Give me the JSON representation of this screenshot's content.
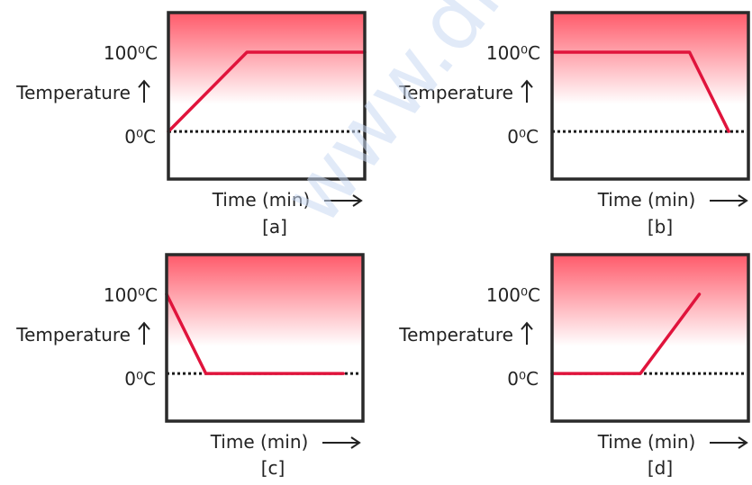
{
  "watermark": "www.drea",
  "colors": {
    "line": "#e0143c",
    "frame": "#2a2a2a",
    "gradient_top": "#ff5a6a",
    "gradient_bottom": "#ffffff",
    "dotted": "#1a1a1a",
    "watermark": "#c9d8f2"
  },
  "chart_data": [
    {
      "type": "line",
      "panel_label": "[a]",
      "ylabel": "Temperature",
      "xlabel": "Time (min)",
      "yticks": [
        "100⁰C",
        "0⁰C"
      ],
      "ylim": [
        -60,
        150
      ],
      "xlim": [
        0,
        10
      ],
      "reference_line": 0,
      "series": [
        {
          "x": [
            0,
            4,
            10
          ],
          "y": [
            0,
            100,
            100
          ]
        }
      ]
    },
    {
      "type": "line",
      "panel_label": "[b]",
      "ylabel": "Temperature",
      "xlabel": "Time (min)",
      "yticks": [
        "100⁰C",
        "0⁰C"
      ],
      "ylim": [
        -60,
        150
      ],
      "xlim": [
        0,
        10
      ],
      "reference_line": 0,
      "series": [
        {
          "x": [
            0,
            7,
            9
          ],
          "y": [
            100,
            100,
            0
          ]
        }
      ]
    },
    {
      "type": "line",
      "panel_label": "[c]",
      "ylabel": "Temperature",
      "xlabel": "Time (min)",
      "yticks": [
        "100⁰C",
        "0⁰C"
      ],
      "ylim": [
        -60,
        150
      ],
      "xlim": [
        0,
        10
      ],
      "reference_line": 0,
      "series": [
        {
          "x": [
            0,
            2,
            9
          ],
          "y": [
            100,
            0,
            0
          ]
        }
      ]
    },
    {
      "type": "line",
      "panel_label": "[d]",
      "ylabel": "Temperature",
      "xlabel": "Time (min)",
      "yticks": [
        "100⁰C",
        "0⁰C"
      ],
      "ylim": [
        -60,
        150
      ],
      "xlim": [
        0,
        10
      ],
      "reference_line": 0,
      "series": [
        {
          "x": [
            0,
            4.5,
            7.5
          ],
          "y": [
            0,
            0,
            100
          ]
        }
      ]
    }
  ]
}
